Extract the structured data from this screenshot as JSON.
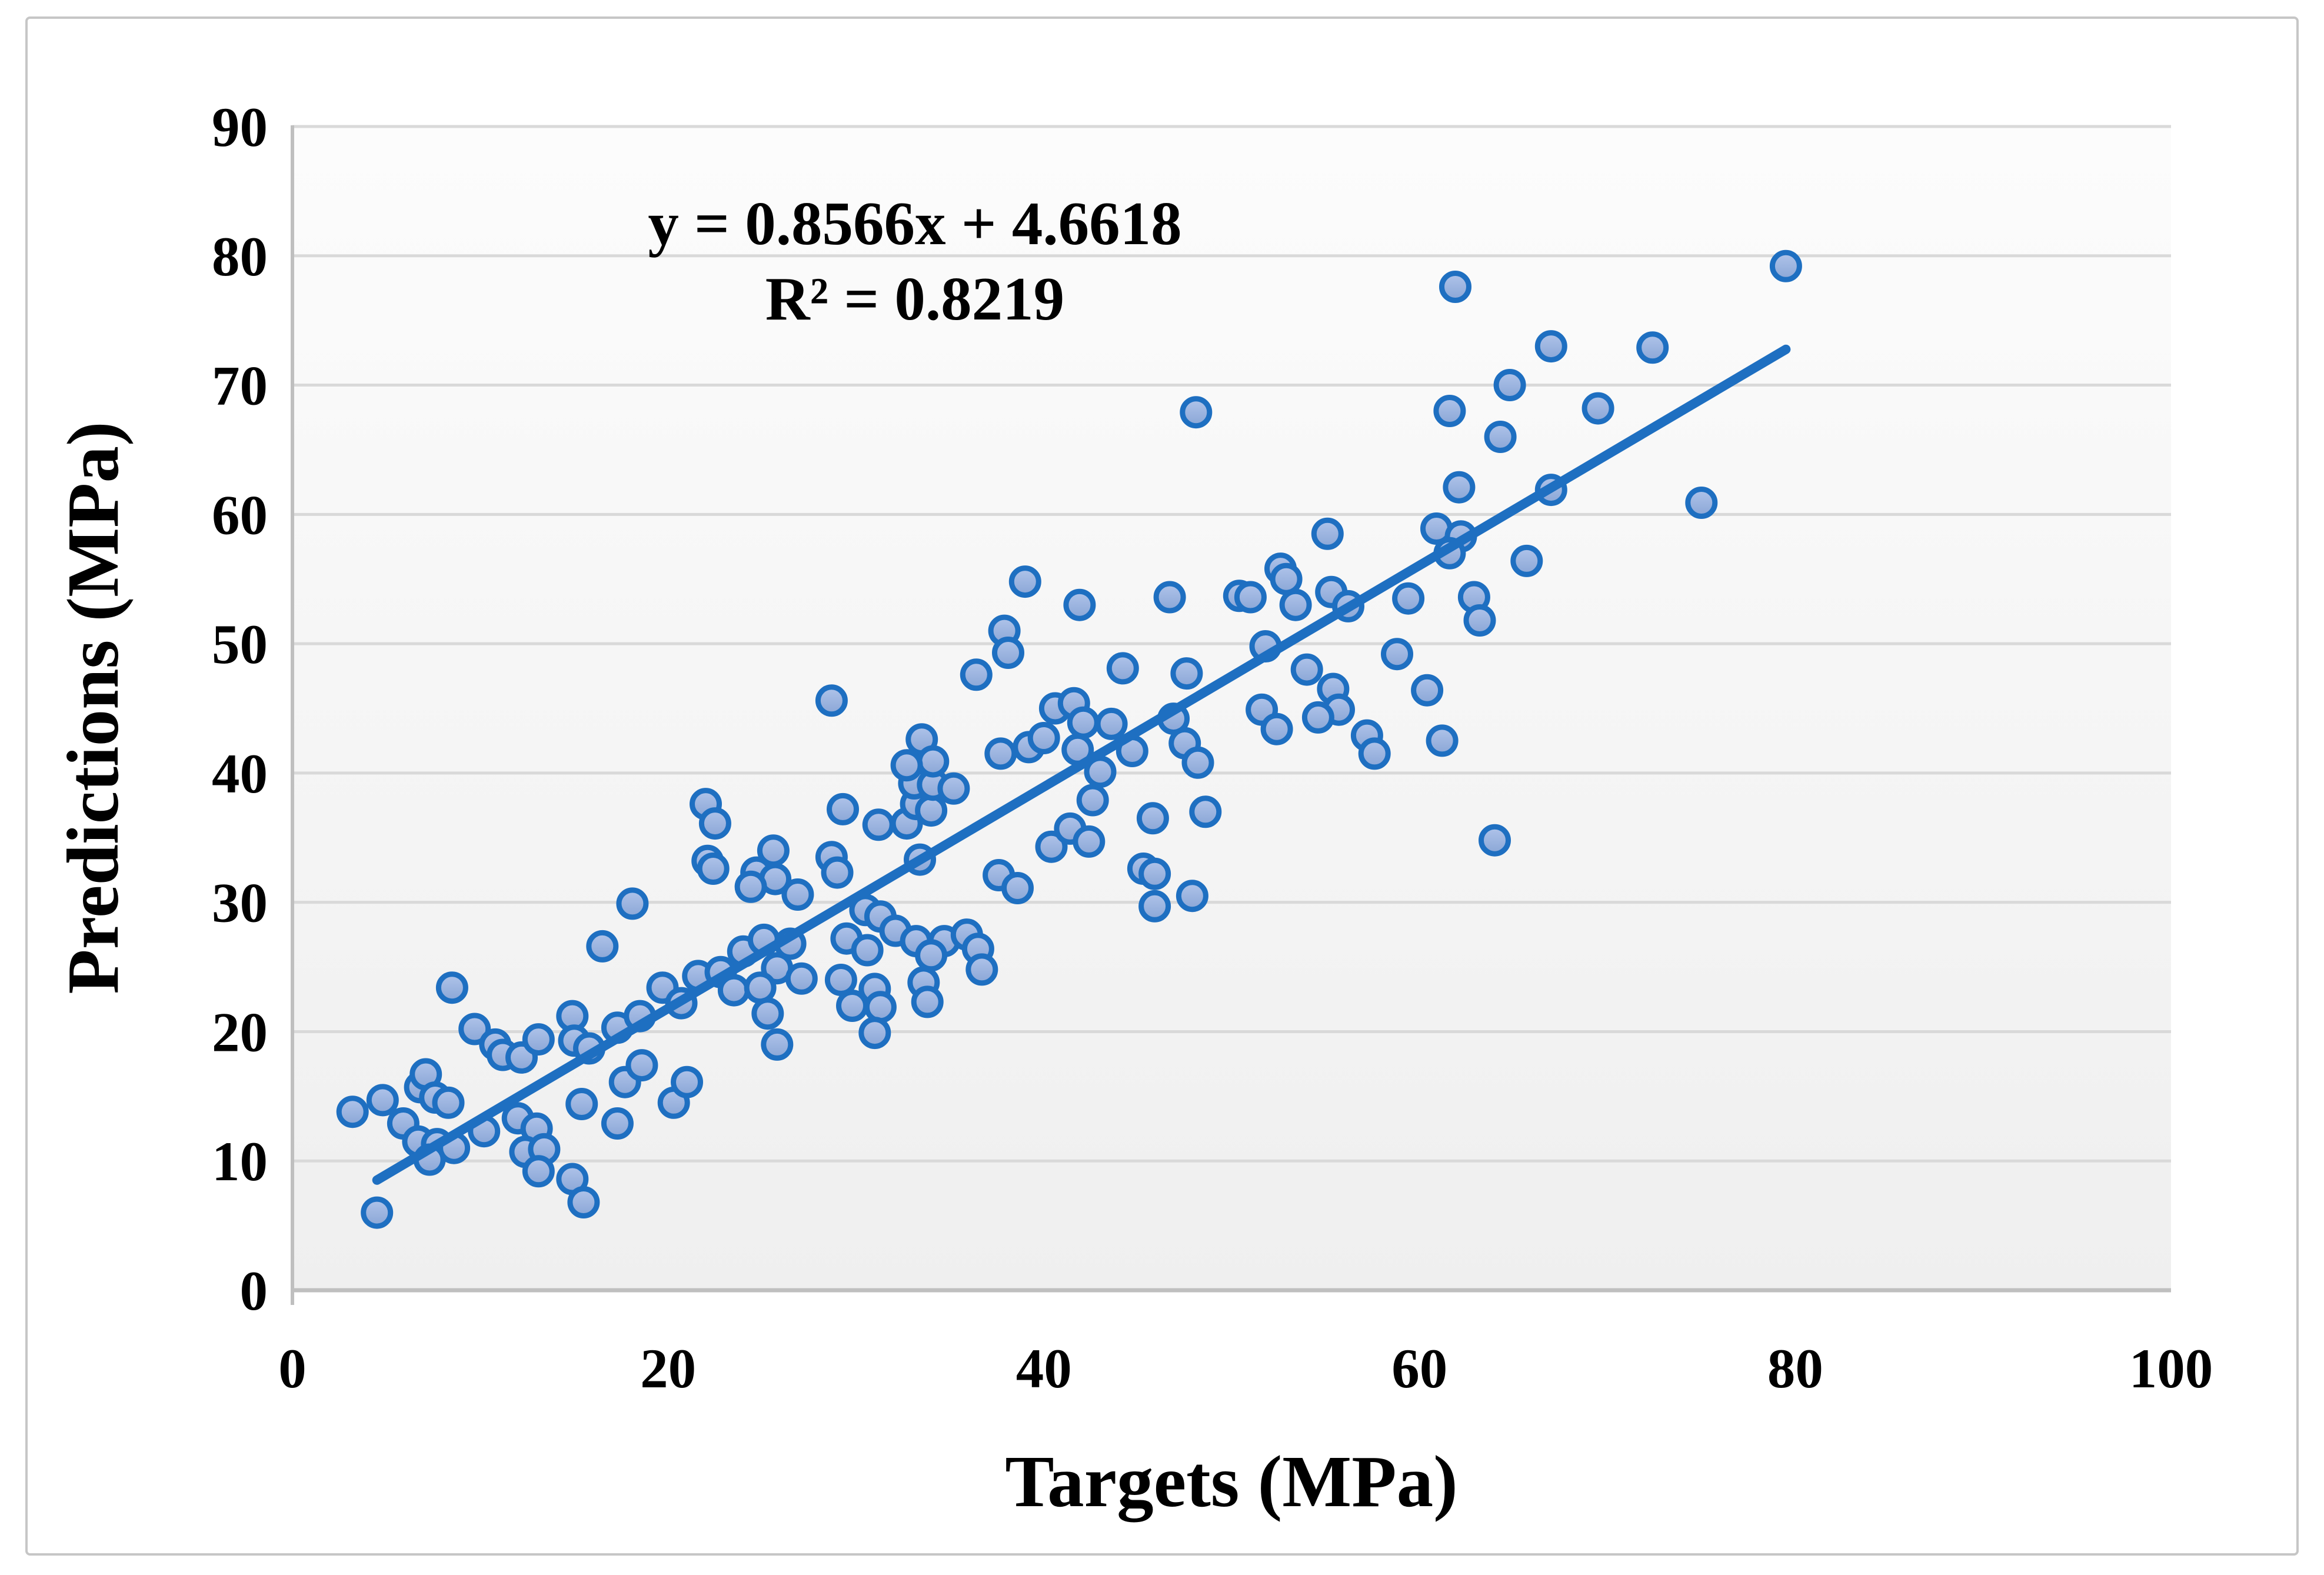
{
  "figure": {
    "background": "#ffffff",
    "border_color": "#c6c6c6"
  },
  "chart_data": {
    "type": "scatter",
    "annotation": {
      "line1": "y = 0.8566x + 4.6618",
      "line2": "R² = 0.8219"
    },
    "xlabel": "Targets (MPa)",
    "ylabel": "Predictions (MPa)",
    "xlim": [
      0,
      100
    ],
    "ylim": [
      0,
      90
    ],
    "x_ticks": [
      0,
      20,
      40,
      60,
      80,
      100
    ],
    "y_ticks": [
      0,
      10,
      20,
      30,
      40,
      50,
      60,
      70,
      80,
      90
    ],
    "grid": "horizontal-only",
    "legend": "none",
    "trendline": {
      "type": "linear",
      "slope": 0.8566,
      "intercept": 4.6618,
      "r2": 0.8219,
      "x_start": 4.5,
      "x_end": 79.5
    },
    "colors": {
      "marker_fill_top": "#b0c4ea",
      "marker_fill_bottom": "#8aa6d6",
      "marker_border": "#1e6fc1",
      "trendline": "#1e6fc1",
      "gridline": "#d9d9d9",
      "axis_line": "#bfbfbf",
      "plot_bg_top": "#fcfcfc",
      "plot_bg_bottom": "#efefef",
      "text": "#000000"
    },
    "series": [
      {
        "name": "predictions-vs-targets",
        "marker": "circle",
        "points": [
          [
            4.5,
            6.0
          ],
          [
            3.2,
            13.8
          ],
          [
            4.8,
            14.7
          ],
          [
            5.9,
            12.9
          ],
          [
            6.7,
            11.5
          ],
          [
            7.7,
            11.3
          ],
          [
            8.6,
            11.0
          ],
          [
            7.3,
            10.1
          ],
          [
            6.8,
            15.7
          ],
          [
            7.1,
            16.7
          ],
          [
            7.6,
            14.9
          ],
          [
            8.3,
            14.5
          ],
          [
            8.5,
            23.4
          ],
          [
            9.7,
            20.2
          ],
          [
            10.8,
            19.0
          ],
          [
            10.2,
            12.3
          ],
          [
            11.2,
            18.2
          ],
          [
            12.0,
            13.3
          ],
          [
            13.0,
            12.5
          ],
          [
            12.4,
            10.7
          ],
          [
            13.4,
            10.9
          ],
          [
            13.1,
            9.2
          ],
          [
            14.9,
            8.6
          ],
          [
            15.5,
            6.8
          ],
          [
            12.2,
            18.0
          ],
          [
            13.1,
            19.4
          ],
          [
            14.9,
            21.2
          ],
          [
            15.0,
            19.3
          ],
          [
            15.8,
            18.7
          ],
          [
            15.4,
            14.4
          ],
          [
            16.5,
            26.6
          ],
          [
            17.3,
            12.9
          ],
          [
            17.7,
            16.1
          ],
          [
            17.3,
            20.3
          ],
          [
            18.5,
            21.2
          ],
          [
            18.1,
            29.9
          ],
          [
            18.6,
            17.4
          ],
          [
            19.7,
            23.4
          ],
          [
            20.7,
            22.2
          ],
          [
            20.3,
            14.5
          ],
          [
            21.0,
            16.1
          ],
          [
            21.6,
            24.3
          ],
          [
            22.8,
            24.6
          ],
          [
            23.5,
            23.2
          ],
          [
            24.0,
            26.2
          ],
          [
            22.1,
            33.2
          ],
          [
            22.4,
            32.6
          ],
          [
            22.0,
            37.6
          ],
          [
            22.5,
            36.1
          ],
          [
            25.1,
            27.1
          ],
          [
            26.5,
            26.8
          ],
          [
            25.8,
            24.9
          ],
          [
            27.1,
            24.1
          ],
          [
            24.9,
            23.4
          ],
          [
            25.3,
            21.4
          ],
          [
            25.8,
            19.0
          ],
          [
            24.7,
            32.3
          ],
          [
            25.7,
            31.8
          ],
          [
            24.4,
            31.2
          ],
          [
            25.6,
            34.0
          ],
          [
            26.9,
            30.6
          ],
          [
            28.7,
            33.5
          ],
          [
            29.0,
            32.3
          ],
          [
            29.5,
            27.2
          ],
          [
            30.6,
            26.3
          ],
          [
            29.2,
            24.0
          ],
          [
            29.8,
            22.0
          ],
          [
            31.0,
            23.3
          ],
          [
            31.3,
            21.9
          ],
          [
            31.0,
            19.9
          ],
          [
            30.5,
            29.4
          ],
          [
            31.3,
            28.9
          ],
          [
            28.7,
            45.6
          ],
          [
            29.3,
            37.2
          ],
          [
            31.2,
            36.0
          ],
          [
            32.1,
            27.8
          ],
          [
            33.2,
            27.0
          ],
          [
            34.7,
            27.0
          ],
          [
            34.0,
            25.9
          ],
          [
            35.9,
            27.5
          ],
          [
            36.5,
            26.4
          ],
          [
            33.6,
            23.8
          ],
          [
            33.8,
            22.3
          ],
          [
            36.7,
            24.8
          ],
          [
            32.7,
            36.1
          ],
          [
            33.2,
            37.6
          ],
          [
            34.0,
            37.1
          ],
          [
            33.1,
            39.2
          ],
          [
            34.1,
            39.1
          ],
          [
            35.2,
            38.8
          ],
          [
            33.5,
            42.6
          ],
          [
            34.1,
            40.9
          ],
          [
            32.7,
            40.6
          ],
          [
            36.4,
            47.6
          ],
          [
            37.9,
            51.0
          ],
          [
            38.1,
            49.3
          ],
          [
            37.7,
            41.5
          ],
          [
            33.4,
            33.3
          ],
          [
            37.6,
            32.1
          ],
          [
            38.6,
            31.1
          ],
          [
            39.0,
            54.8
          ],
          [
            41.9,
            53.0
          ],
          [
            39.2,
            42.0
          ],
          [
            40.0,
            42.7
          ],
          [
            40.6,
            45.0
          ],
          [
            41.6,
            45.4
          ],
          [
            42.1,
            43.9
          ],
          [
            42.6,
            37.9
          ],
          [
            40.4,
            34.3
          ],
          [
            41.4,
            35.7
          ],
          [
            42.4,
            34.7
          ],
          [
            43.6,
            43.8
          ],
          [
            44.2,
            48.1
          ],
          [
            44.7,
            41.7
          ],
          [
            43.0,
            40.1
          ],
          [
            41.8,
            41.8
          ],
          [
            45.3,
            32.6
          ],
          [
            45.9,
            32.2
          ],
          [
            45.9,
            29.7
          ],
          [
            47.9,
            30.5
          ],
          [
            45.8,
            36.5
          ],
          [
            46.9,
            44.2
          ],
          [
            47.5,
            42.3
          ],
          [
            48.2,
            40.8
          ],
          [
            48.6,
            37.0
          ],
          [
            48.1,
            67.9
          ],
          [
            47.6,
            47.7
          ],
          [
            50.4,
            53.7
          ],
          [
            51.0,
            53.6
          ],
          [
            52.6,
            55.8
          ],
          [
            52.9,
            55.0
          ],
          [
            51.8,
            49.8
          ],
          [
            51.6,
            44.9
          ],
          [
            52.4,
            43.4
          ],
          [
            53.4,
            53.0
          ],
          [
            55.3,
            54.0
          ],
          [
            56.2,
            52.9
          ],
          [
            54.0,
            48.0
          ],
          [
            55.4,
            46.5
          ],
          [
            55.7,
            44.9
          ],
          [
            54.6,
            44.3
          ],
          [
            57.2,
            42.9
          ],
          [
            57.6,
            41.5
          ],
          [
            55.1,
            58.5
          ],
          [
            46.7,
            53.6
          ],
          [
            59.4,
            53.5
          ],
          [
            58.8,
            49.2
          ],
          [
            61.2,
            42.5
          ],
          [
            60.4,
            46.4
          ],
          [
            62.9,
            53.6
          ],
          [
            63.2,
            51.8
          ],
          [
            64.0,
            34.8
          ],
          [
            60.9,
            58.9
          ],
          [
            62.2,
            58.3
          ],
          [
            61.6,
            57.0
          ],
          [
            61.9,
            77.6
          ],
          [
            61.6,
            68.0
          ],
          [
            62.1,
            62.1
          ],
          [
            64.8,
            70.0
          ],
          [
            64.3,
            66.0
          ],
          [
            65.7,
            56.4
          ],
          [
            67.0,
            61.9
          ],
          [
            67.0,
            73.0
          ],
          [
            69.5,
            68.2
          ],
          [
            72.4,
            72.9
          ],
          [
            75.0,
            60.9
          ],
          [
            79.5,
            79.2
          ]
        ]
      }
    ]
  }
}
